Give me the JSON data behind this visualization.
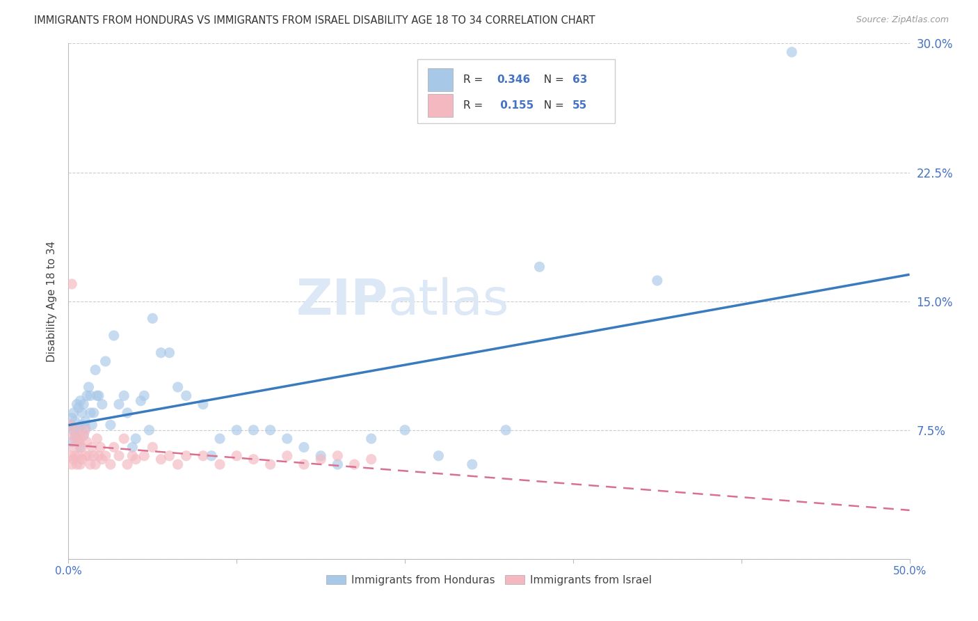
{
  "title": "IMMIGRANTS FROM HONDURAS VS IMMIGRANTS FROM ISRAEL DISABILITY AGE 18 TO 34 CORRELATION CHART",
  "source": "Source: ZipAtlas.com",
  "ylabel": "Disability Age 18 to 34",
  "xlim": [
    0.0,
    0.5
  ],
  "ylim": [
    0.0,
    0.3
  ],
  "xticks": [
    0.0,
    0.1,
    0.2,
    0.3,
    0.4,
    0.5
  ],
  "yticks": [
    0.0,
    0.075,
    0.15,
    0.225,
    0.3
  ],
  "ytick_labels": [
    "",
    "7.5%",
    "15.0%",
    "22.5%",
    "30.0%"
  ],
  "xtick_labels": [
    "0.0%",
    "",
    "",
    "",
    "",
    "50.0%"
  ],
  "legend_R_honduras": "0.346",
  "legend_N_honduras": "63",
  "legend_R_israel": "0.155",
  "legend_N_israel": "55",
  "color_honduras": "#a8c8e8",
  "color_israel": "#f4b8c0",
  "trendline_color_honduras": "#3a7abf",
  "trendline_color_israel": "#d97090",
  "legend_text_color": "#4472c4",
  "watermark_color": "#dce8f5",
  "background_color": "#ffffff",
  "grid_color": "#cccccc",
  "tick_label_color": "#4472c4",
  "honduras_x": [
    0.001,
    0.002,
    0.002,
    0.003,
    0.003,
    0.004,
    0.004,
    0.005,
    0.005,
    0.006,
    0.006,
    0.007,
    0.007,
    0.008,
    0.008,
    0.009,
    0.009,
    0.01,
    0.01,
    0.011,
    0.012,
    0.013,
    0.013,
    0.014,
    0.015,
    0.016,
    0.017,
    0.018,
    0.02,
    0.022,
    0.025,
    0.027,
    0.03,
    0.033,
    0.035,
    0.038,
    0.04,
    0.043,
    0.045,
    0.048,
    0.05,
    0.055,
    0.06,
    0.065,
    0.07,
    0.08,
    0.085,
    0.09,
    0.1,
    0.11,
    0.12,
    0.13,
    0.14,
    0.15,
    0.16,
    0.18,
    0.2,
    0.22,
    0.24,
    0.26,
    0.28,
    0.35,
    0.43
  ],
  "honduras_y": [
    0.078,
    0.082,
    0.068,
    0.075,
    0.085,
    0.072,
    0.08,
    0.07,
    0.09,
    0.076,
    0.088,
    0.065,
    0.092,
    0.078,
    0.085,
    0.072,
    0.09,
    0.08,
    0.076,
    0.095,
    0.1,
    0.085,
    0.095,
    0.078,
    0.085,
    0.11,
    0.095,
    0.095,
    0.09,
    0.115,
    0.078,
    0.13,
    0.09,
    0.095,
    0.085,
    0.065,
    0.07,
    0.092,
    0.095,
    0.075,
    0.14,
    0.12,
    0.12,
    0.1,
    0.095,
    0.09,
    0.06,
    0.07,
    0.075,
    0.075,
    0.075,
    0.07,
    0.065,
    0.06,
    0.055,
    0.07,
    0.075,
    0.06,
    0.055,
    0.075,
    0.17,
    0.162,
    0.295
  ],
  "israel_x": [
    0.001,
    0.001,
    0.002,
    0.002,
    0.003,
    0.003,
    0.004,
    0.004,
    0.005,
    0.005,
    0.006,
    0.006,
    0.007,
    0.007,
    0.008,
    0.008,
    0.009,
    0.01,
    0.01,
    0.011,
    0.012,
    0.013,
    0.014,
    0.015,
    0.016,
    0.017,
    0.018,
    0.019,
    0.02,
    0.022,
    0.025,
    0.027,
    0.03,
    0.033,
    0.035,
    0.038,
    0.04,
    0.045,
    0.05,
    0.055,
    0.06,
    0.065,
    0.07,
    0.08,
    0.09,
    0.1,
    0.11,
    0.12,
    0.13,
    0.14,
    0.15,
    0.16,
    0.17,
    0.18,
    0.002
  ],
  "israel_y": [
    0.078,
    0.06,
    0.072,
    0.055,
    0.065,
    0.058,
    0.07,
    0.06,
    0.075,
    0.055,
    0.068,
    0.06,
    0.055,
    0.07,
    0.065,
    0.058,
    0.072,
    0.06,
    0.075,
    0.068,
    0.06,
    0.055,
    0.065,
    0.06,
    0.055,
    0.07,
    0.06,
    0.065,
    0.058,
    0.06,
    0.055,
    0.065,
    0.06,
    0.07,
    0.055,
    0.06,
    0.058,
    0.06,
    0.065,
    0.058,
    0.06,
    0.055,
    0.06,
    0.06,
    0.055,
    0.06,
    0.058,
    0.055,
    0.06,
    0.055,
    0.058,
    0.06,
    0.055,
    0.058,
    0.16
  ]
}
